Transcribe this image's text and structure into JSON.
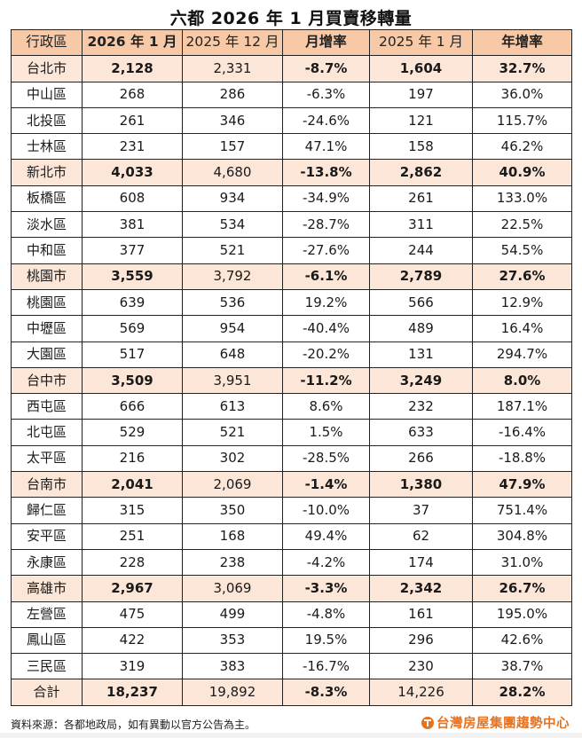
{
  "title": "六都 2026 年 1 月買賣移轉量",
  "table": {
    "headers": [
      "行政區",
      "2026 年 1 月",
      "2025 年 12 月",
      "月增率",
      "2025 年 1 月",
      "年增率"
    ],
    "rows": [
      {
        "type": "city",
        "cells": [
          "台北市",
          "2,128",
          "2,331",
          "-8.7%",
          "1,604",
          "32.7%"
        ]
      },
      {
        "type": "dist",
        "cells": [
          "中山區",
          "268",
          "286",
          "-6.3%",
          "197",
          "36.0%"
        ]
      },
      {
        "type": "dist",
        "cells": [
          "北投區",
          "261",
          "346",
          "-24.6%",
          "121",
          "115.7%"
        ]
      },
      {
        "type": "dist",
        "cells": [
          "士林區",
          "231",
          "157",
          "47.1%",
          "158",
          "46.2%"
        ]
      },
      {
        "type": "city",
        "cells": [
          "新北市",
          "4,033",
          "4,680",
          "-13.8%",
          "2,862",
          "40.9%"
        ]
      },
      {
        "type": "dist",
        "cells": [
          "板橋區",
          "608",
          "934",
          "-34.9%",
          "261",
          "133.0%"
        ]
      },
      {
        "type": "dist",
        "cells": [
          "淡水區",
          "381",
          "534",
          "-28.7%",
          "311",
          "22.5%"
        ]
      },
      {
        "type": "dist",
        "cells": [
          "中和區",
          "377",
          "521",
          "-27.6%",
          "244",
          "54.5%"
        ]
      },
      {
        "type": "city",
        "cells": [
          "桃園市",
          "3,559",
          "3,792",
          "-6.1%",
          "2,789",
          "27.6%"
        ]
      },
      {
        "type": "dist",
        "cells": [
          "桃園區",
          "639",
          "536",
          "19.2%",
          "566",
          "12.9%"
        ]
      },
      {
        "type": "dist",
        "cells": [
          "中壢區",
          "569",
          "954",
          "-40.4%",
          "489",
          "16.4%"
        ]
      },
      {
        "type": "dist",
        "cells": [
          "大園區",
          "517",
          "648",
          "-20.2%",
          "131",
          "294.7%"
        ]
      },
      {
        "type": "city",
        "cells": [
          "台中市",
          "3,509",
          "3,951",
          "-11.2%",
          "3,249",
          "8.0%"
        ]
      },
      {
        "type": "dist",
        "cells": [
          "西屯區",
          "666",
          "613",
          "8.6%",
          "232",
          "187.1%"
        ]
      },
      {
        "type": "dist",
        "cells": [
          "北屯區",
          "529",
          "521",
          "1.5%",
          "633",
          "-16.4%"
        ]
      },
      {
        "type": "dist",
        "cells": [
          "太平區",
          "216",
          "302",
          "-28.5%",
          "266",
          "-18.8%"
        ]
      },
      {
        "type": "city",
        "cells": [
          "台南市",
          "2,041",
          "2,069",
          "-1.4%",
          "1,380",
          "47.9%"
        ]
      },
      {
        "type": "dist",
        "cells": [
          "歸仁區",
          "315",
          "350",
          "-10.0%",
          "37",
          "751.4%"
        ]
      },
      {
        "type": "dist",
        "cells": [
          "安平區",
          "251",
          "168",
          "49.4%",
          "62",
          "304.8%"
        ]
      },
      {
        "type": "dist",
        "cells": [
          "永康區",
          "228",
          "238",
          "-4.2%",
          "174",
          "31.0%"
        ]
      },
      {
        "type": "city",
        "cells": [
          "高雄市",
          "2,967",
          "3,069",
          "-3.3%",
          "2,342",
          "26.7%"
        ]
      },
      {
        "type": "dist",
        "cells": [
          "左營區",
          "475",
          "499",
          "-4.8%",
          "161",
          "195.0%"
        ]
      },
      {
        "type": "dist",
        "cells": [
          "鳳山區",
          "422",
          "353",
          "19.5%",
          "296",
          "42.6%"
        ]
      },
      {
        "type": "dist",
        "cells": [
          "三民區",
          "319",
          "383",
          "-16.7%",
          "230",
          "38.7%"
        ]
      },
      {
        "type": "total",
        "cells": [
          "合計",
          "18,237",
          "19,892",
          "-8.3%",
          "14,226",
          "28.2%"
        ]
      }
    ]
  },
  "footer": {
    "source_note": "資料來源：各都地政局，如有異動以官方公告為主。",
    "brand": "台灣房屋集團趨勢中心"
  },
  "colors": {
    "header_bg": "#f7c9a6",
    "city_row_bg": "#fbe6d8",
    "brand_orange": "#e8731e"
  }
}
